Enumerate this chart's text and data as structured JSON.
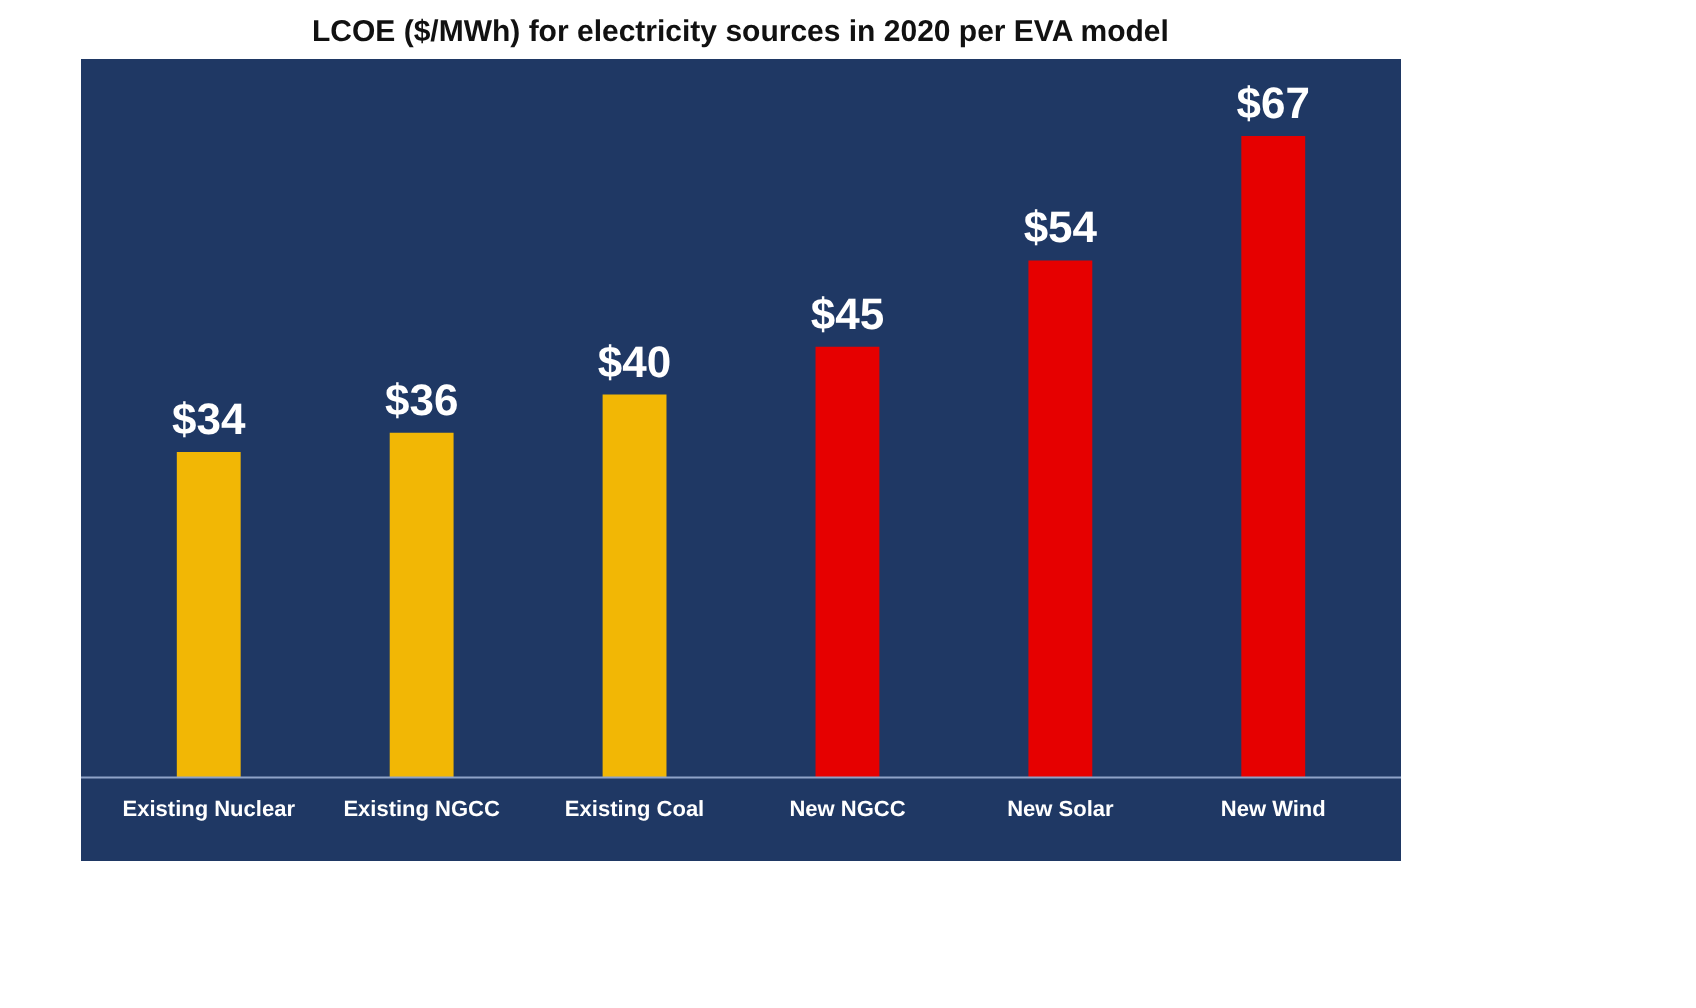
{
  "chart_data": {
    "type": "bar",
    "title": "LCOE ($/MWh) for electricity sources in 2020 per EVA model",
    "categories": [
      "Existing Nuclear",
      "Existing NGCC",
      "Existing Coal",
      "New NGCC",
      "New Solar",
      "New Wind"
    ],
    "values": [
      34,
      36,
      40,
      45,
      54,
      67
    ],
    "colors": [
      "#f2b705",
      "#f2b705",
      "#f2b705",
      "#e60000",
      "#e60000",
      "#e60000"
    ],
    "value_labels": [
      "$34",
      "$36",
      "$40",
      "$45",
      "$54",
      "$67"
    ],
    "grid": false
  }
}
